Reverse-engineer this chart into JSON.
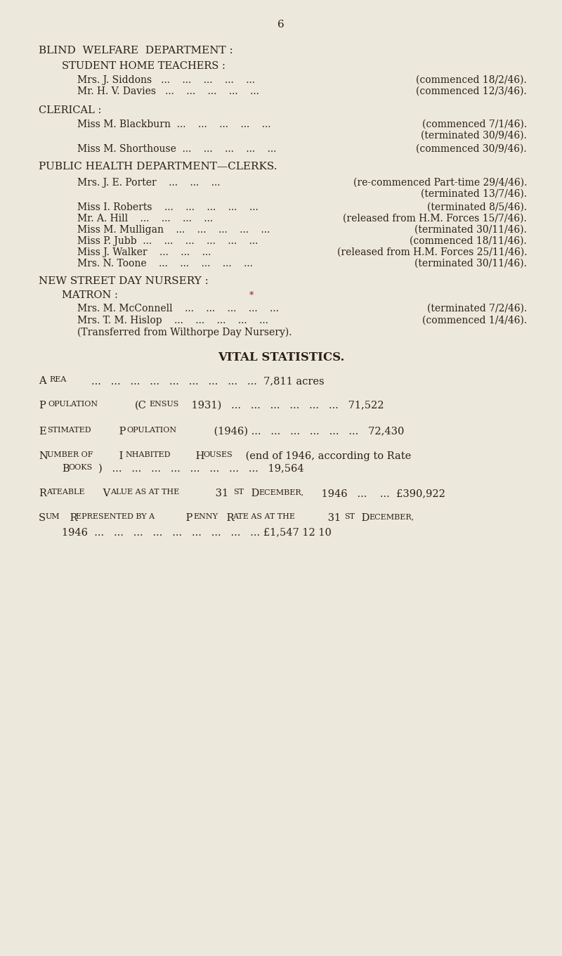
{
  "bg_color": "#ede8dc",
  "text_color": "#2b1f14",
  "page_num": "6",
  "serif": "DejaVu Serif",
  "dpi": 100,
  "fig_w": 8.0,
  "fig_h": 13.6
}
